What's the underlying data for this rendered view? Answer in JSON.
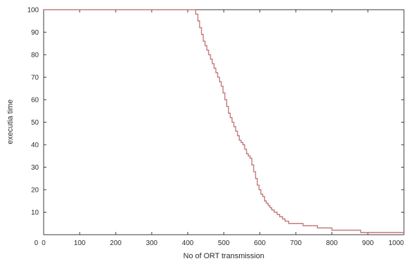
{
  "chart_data": {
    "type": "line",
    "title": "",
    "xlabel": "No of ORT transmission",
    "ylabel": "executia time",
    "xlim": [
      0,
      1000
    ],
    "ylim": [
      0,
      100
    ],
    "x_ticks": [
      0,
      100,
      200,
      300,
      400,
      500,
      600,
      700,
      800,
      900,
      1000
    ],
    "y_ticks": [
      0,
      10,
      20,
      30,
      40,
      50,
      60,
      70,
      80,
      90,
      100
    ],
    "x_tick_labels": [
      "0",
      "100",
      "200",
      "300",
      "400",
      "500",
      "600",
      "700",
      "800",
      "900",
      "1000"
    ],
    "y_tick_labels": [
      "0",
      "10",
      "20",
      "30",
      "40",
      "50",
      "60",
      "70",
      "80",
      "90",
      "100"
    ],
    "grid": false,
    "legend": "none",
    "line_color": "#c47a7a",
    "series": [
      {
        "step": true,
        "x": [
          0,
          422,
          428,
          433,
          438,
          443,
          448,
          453,
          458,
          463,
          468,
          473,
          478,
          483,
          488,
          493,
          498,
          503,
          508,
          513,
          518,
          523,
          528,
          533,
          538,
          543,
          548,
          553,
          558,
          563,
          568,
          573,
          578,
          583,
          588,
          593,
          598,
          603,
          608,
          613,
          618,
          623,
          628,
          633,
          640,
          648,
          655,
          663,
          670,
          680,
          690,
          700,
          710,
          720,
          740,
          760,
          780,
          800,
          820,
          850,
          880,
          910,
          930,
          950,
          970,
          1000
        ],
        "y": [
          100,
          98,
          95,
          92,
          89,
          86,
          84,
          82,
          80,
          78,
          76,
          74,
          72,
          70,
          68,
          66,
          63,
          60,
          57,
          54,
          52,
          50,
          48,
          46,
          44,
          42,
          41,
          40,
          38,
          36,
          35,
          34,
          31,
          28,
          25,
          22,
          20,
          18,
          17,
          15,
          14,
          13,
          12,
          11,
          10,
          9,
          8,
          7,
          6,
          5,
          5,
          5,
          5,
          4,
          4,
          3,
          3,
          2,
          2,
          2,
          1,
          1,
          1,
          1,
          1,
          1
        ]
      }
    ]
  }
}
